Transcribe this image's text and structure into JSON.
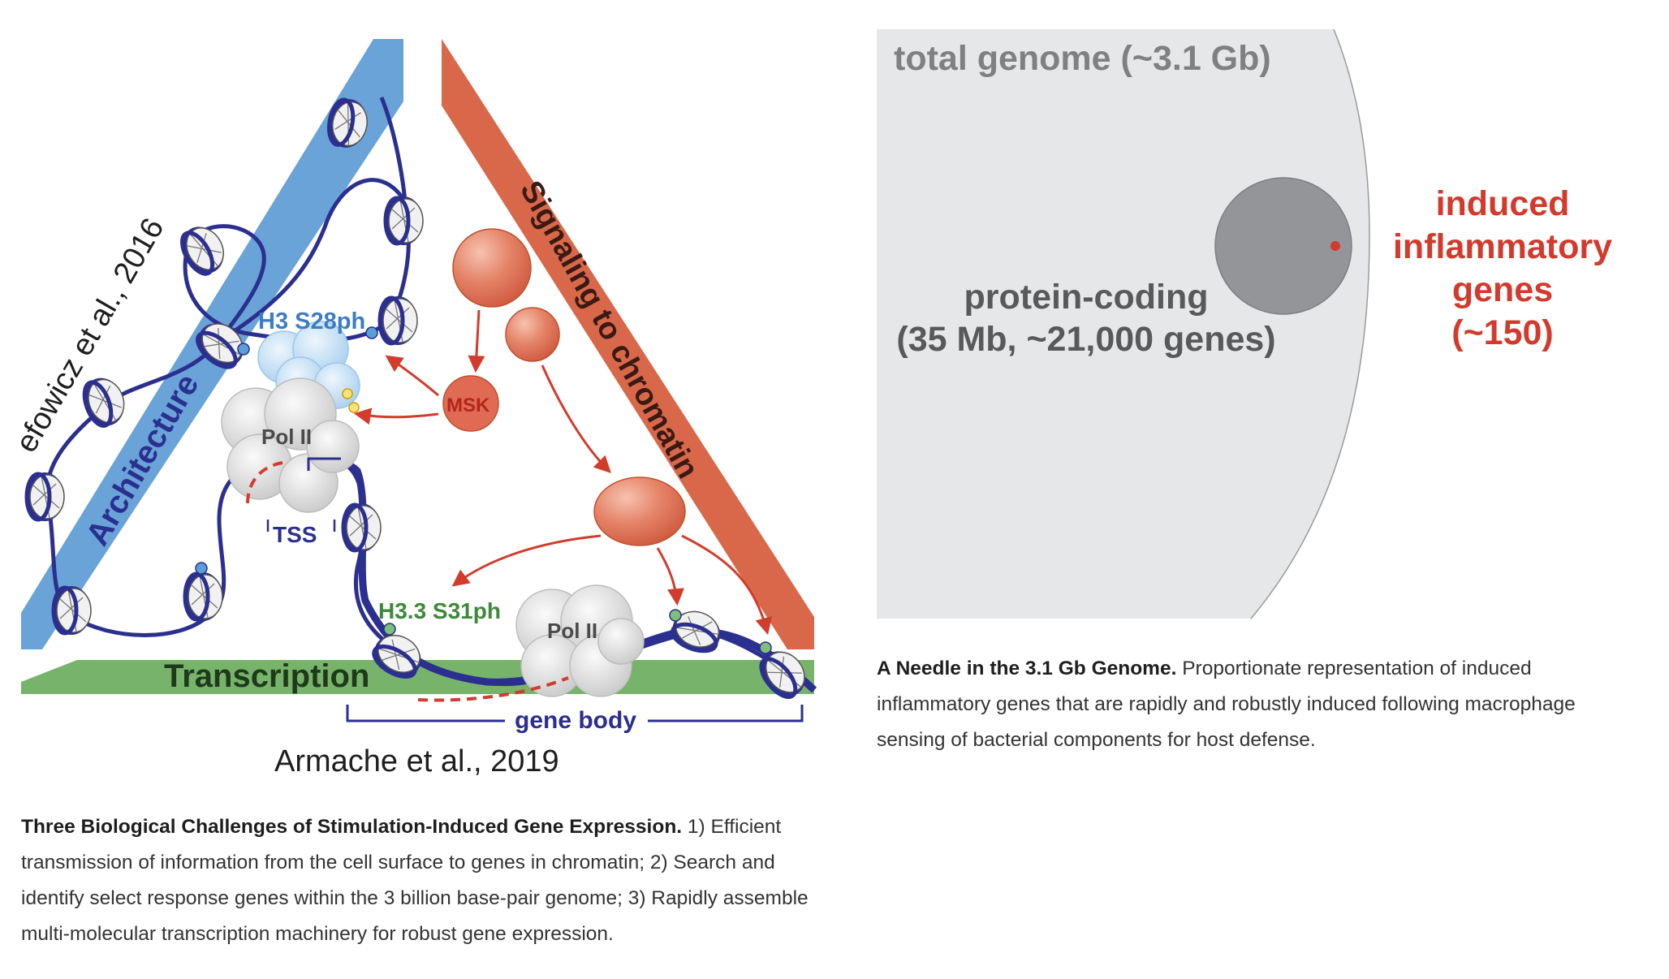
{
  "left_figure": {
    "labels": {
      "architecture": "Architecture",
      "signaling": "Signaling to chromatin",
      "transcription": "Transcription",
      "citation_top": "efowicz et al., 2016",
      "citation_bottom": "Armache et al., 2019",
      "h3_s28ph": "H3 S28ph",
      "h33_s31ph": "H3.3 S31ph",
      "msk": "MSK",
      "pol2_top": "Pol II",
      "pol2_bottom": "Pol II",
      "tss": "TSS",
      "gene_body": "gene body"
    },
    "caption": {
      "title": "Three Biological Challenges of Stimulation-Induced Gene Expression.",
      "text": " 1) Efficient transmission of information from the cell surface to genes in chromatin; 2) Search and identify select response genes within the 3 billion base-pair genome; 3) Rapidly assemble multi-molecular transcription machinery for robust gene expression."
    },
    "colors": {
      "architecture": "#6aa3d8",
      "signaling": "#d9684a",
      "transcription": "#77b36a",
      "dna": "#2b2f8f"
    }
  },
  "right_figure": {
    "labels": {
      "total_genome": "total genome (~3.1 Gb)",
      "protein_coding_line1": "protein-coding",
      "protein_coding_line2": "(35 Mb, ~21,000 genes)",
      "induced_line1": "induced",
      "induced_line2": "inflammatory",
      "induced_line3": "genes",
      "induced_line4": "(~150)"
    },
    "caption": {
      "title": "A Needle in the 3.1 Gb Genome.",
      "text": " Proportionate representation of induced inflammatory genes that are rapidly and robustly induced following macrophage sensing of bacterial components for host defense."
    },
    "colors": {
      "genome": "#e6e7e9",
      "protein_coding": "#939598",
      "induced": "#d33a2c"
    }
  }
}
